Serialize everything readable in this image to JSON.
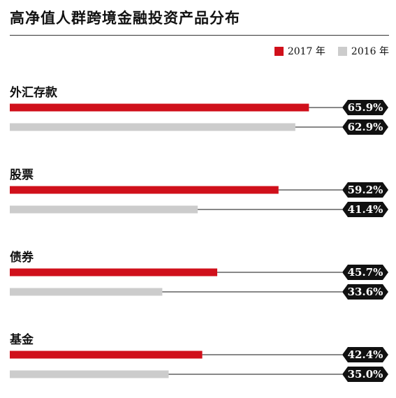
{
  "chart_data": {
    "type": "bar",
    "orientation": "horizontal",
    "title": "高净值人群跨境金融投资产品分布",
    "categories": [
      "外汇存款",
      "股票",
      "债券",
      "基金"
    ],
    "series": [
      {
        "name": "2017 年",
        "color": "#d0101b",
        "values": [
          65.9,
          59.2,
          45.7,
          42.4
        ],
        "labels": [
          "65.9%",
          "59.2%",
          "45.7%",
          "42.4%"
        ]
      },
      {
        "name": "2016 年",
        "color": "#cccccc",
        "values": [
          62.9,
          41.4,
          33.6,
          35.0
        ],
        "labels": [
          "62.9%",
          "41.4%",
          "33.6%",
          "35.0%"
        ]
      }
    ],
    "xlim": [
      0,
      100
    ],
    "unit": "%",
    "legend_position": "top-right",
    "grid": false
  }
}
